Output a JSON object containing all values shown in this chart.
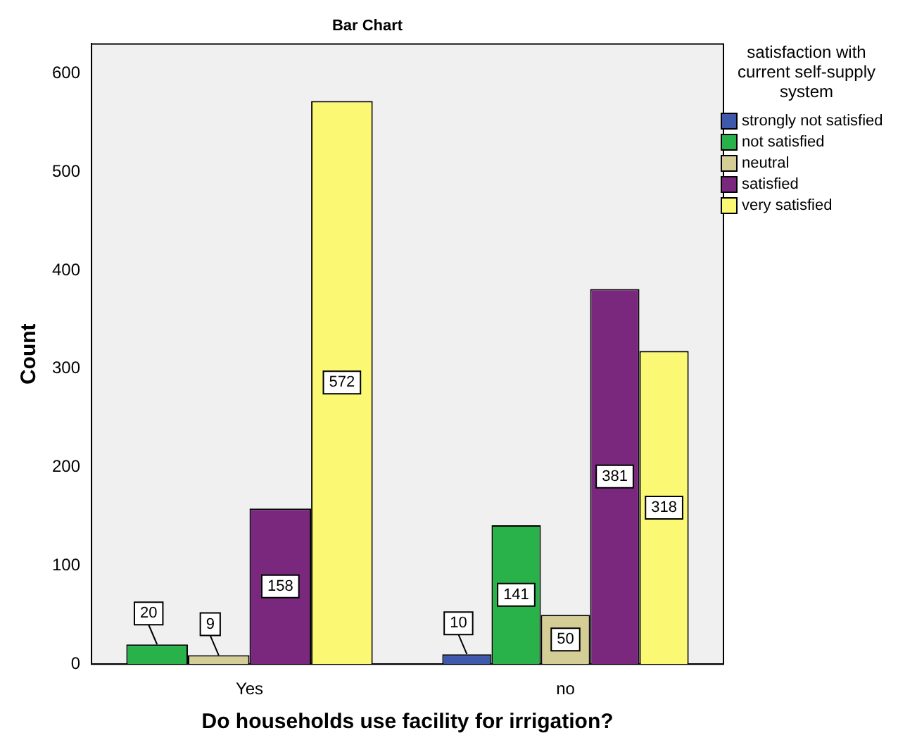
{
  "chart_data": {
    "type": "bar",
    "title": "Bar Chart",
    "xlabel": "Do households use facility for irrigation?",
    "ylabel": "Count",
    "legend_title": "satisfaction with current self-supply system",
    "categories": [
      "Yes",
      "no"
    ],
    "series": [
      {
        "name": "strongly not satisfied",
        "color": "#3e58ac",
        "values": [
          null,
          10
        ]
      },
      {
        "name": "not satisfied",
        "color": "#2ab24a",
        "values": [
          20,
          141
        ]
      },
      {
        "name": "neutral",
        "color": "#d5cd96",
        "values": [
          9,
          50
        ]
      },
      {
        "name": "satisfied",
        "color": "#79287d",
        "values": [
          158,
          381
        ]
      },
      {
        "name": "very satisfied",
        "color": "#fbf873",
        "values": [
          572,
          318
        ]
      }
    ],
    "ylim": [
      0,
      630
    ],
    "yticks": [
      0,
      100,
      200,
      300,
      400,
      500,
      600
    ],
    "grid": false,
    "legend": "top right",
    "data_labels": true
  }
}
